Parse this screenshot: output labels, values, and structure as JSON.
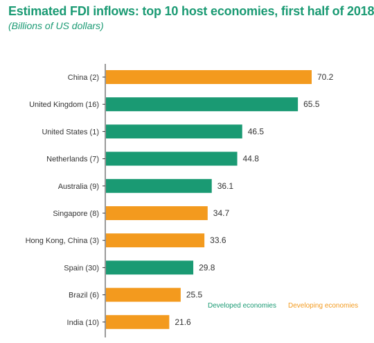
{
  "title": "Estimated FDI inflows: top 10 host economies, first half of 2018",
  "subtitle": "(Billions of US dollars)",
  "colors": {
    "developed": "#1a9a73",
    "developing": "#f39a1e",
    "axis": "#333333"
  },
  "legend": {
    "developed_label": "Developed economies",
    "developing_label": "Developing economies"
  },
  "chart_data": {
    "type": "bar",
    "orientation": "horizontal",
    "title": "Estimated FDI inflows: top 10 host economies, first half of 2018",
    "subtitle": "(Billions of US dollars)",
    "categories": [
      "China (2)",
      "United Kingdom (16)",
      "United States (1)",
      "Netherlands (7)",
      "Australia (9)",
      "Singapore (8)",
      "Hong Kong, China (3)",
      "Spain (30)",
      "Brazil (6)",
      "India (10)"
    ],
    "values": [
      70.2,
      65.5,
      46.5,
      44.8,
      36.1,
      34.7,
      33.6,
      29.8,
      25.5,
      21.6
    ],
    "value_labels": [
      "70.2",
      "65.5",
      "46.5",
      "44.8",
      "36.1",
      "34.7",
      "33.6",
      "29.8",
      "25.5",
      "21.6"
    ],
    "groups": [
      "developing",
      "developed",
      "developed",
      "developed",
      "developed",
      "developing",
      "developing",
      "developed",
      "developing",
      "developing"
    ],
    "xlim": [
      0,
      75
    ],
    "grid": false,
    "legend_position": "bottom-right"
  }
}
